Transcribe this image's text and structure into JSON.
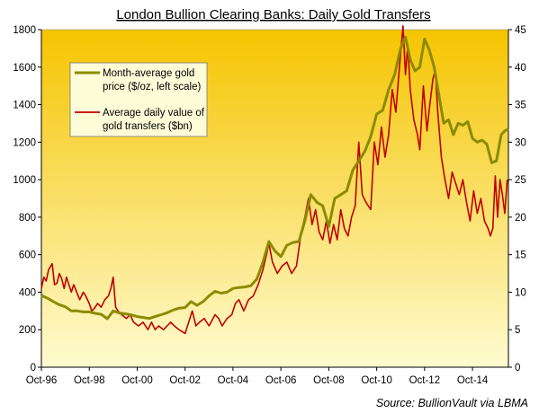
{
  "chart_data": {
    "type": "line",
    "title": "London Bullion Clearing Banks: Daily Gold Transfers",
    "source": "Source: BullionVault via LBMA",
    "x_labels": [
      "Oct-96",
      "Oct-98",
      "Oct-00",
      "Oct-02",
      "Oct-04",
      "Oct-06",
      "Oct-08",
      "Oct-10",
      "Oct-12",
      "Oct-14"
    ],
    "y_left_ticks": [
      "0",
      "200",
      "400",
      "600",
      "800",
      "1000",
      "1200",
      "1400",
      "1600",
      "1800"
    ],
    "y_right_ticks": [
      "0",
      "5",
      "10",
      "15",
      "20",
      "25",
      "30",
      "35",
      "40",
      "45"
    ],
    "ylim_left": [
      0,
      1800
    ],
    "ylim_right": [
      0,
      45
    ],
    "xlim": [
      1996.75,
      2016.25
    ],
    "background": {
      "top": "#f5c400",
      "bottom": "#fffbd0"
    },
    "series": [
      {
        "name": "Month-average gold price ($/oz, left scale)",
        "axis": "left",
        "color": "#8b8b00",
        "points": [
          [
            1996.75,
            382
          ],
          [
            1997.0,
            368
          ],
          [
            1997.25,
            350
          ],
          [
            1997.5,
            333
          ],
          [
            1997.75,
            322
          ],
          [
            1998.0,
            300
          ],
          [
            1998.25,
            300
          ],
          [
            1998.5,
            295
          ],
          [
            1998.75,
            295
          ],
          [
            1999.0,
            287
          ],
          [
            1999.25,
            282
          ],
          [
            1999.5,
            258
          ],
          [
            1999.75,
            300
          ],
          [
            2000.0,
            289
          ],
          [
            2000.25,
            285
          ],
          [
            2000.5,
            279
          ],
          [
            2000.75,
            270
          ],
          [
            2001.0,
            265
          ],
          [
            2001.25,
            260
          ],
          [
            2001.5,
            270
          ],
          [
            2001.75,
            280
          ],
          [
            2002.0,
            290
          ],
          [
            2002.25,
            305
          ],
          [
            2002.5,
            315
          ],
          [
            2002.75,
            318
          ],
          [
            2003.0,
            350
          ],
          [
            2003.25,
            330
          ],
          [
            2003.5,
            350
          ],
          [
            2003.75,
            380
          ],
          [
            2004.0,
            405
          ],
          [
            2004.25,
            395
          ],
          [
            2004.5,
            400
          ],
          [
            2004.75,
            420
          ],
          [
            2005.0,
            425
          ],
          [
            2005.25,
            428
          ],
          [
            2005.5,
            435
          ],
          [
            2005.75,
            470
          ],
          [
            2006.0,
            560
          ],
          [
            2006.25,
            670
          ],
          [
            2006.5,
            620
          ],
          [
            2006.75,
            590
          ],
          [
            2007.0,
            650
          ],
          [
            2007.25,
            665
          ],
          [
            2007.5,
            670
          ],
          [
            2007.75,
            780
          ],
          [
            2008.0,
            920
          ],
          [
            2008.25,
            880
          ],
          [
            2008.5,
            860
          ],
          [
            2008.75,
            750
          ],
          [
            2009.0,
            900
          ],
          [
            2009.25,
            920
          ],
          [
            2009.5,
            940
          ],
          [
            2009.75,
            1050
          ],
          [
            2010.0,
            1100
          ],
          [
            2010.25,
            1150
          ],
          [
            2010.5,
            1230
          ],
          [
            2010.75,
            1350
          ],
          [
            2011.0,
            1370
          ],
          [
            2011.25,
            1480
          ],
          [
            2011.5,
            1560
          ],
          [
            2011.75,
            1700
          ],
          [
            2011.95,
            1760
          ],
          [
            2012.15,
            1640
          ],
          [
            2012.35,
            1580
          ],
          [
            2012.55,
            1600
          ],
          [
            2012.75,
            1750
          ],
          [
            2012.95,
            1690
          ],
          [
            2013.15,
            1600
          ],
          [
            2013.35,
            1450
          ],
          [
            2013.55,
            1300
          ],
          [
            2013.75,
            1320
          ],
          [
            2013.95,
            1240
          ],
          [
            2014.15,
            1300
          ],
          [
            2014.35,
            1290
          ],
          [
            2014.55,
            1310
          ],
          [
            2014.75,
            1220
          ],
          [
            2014.95,
            1200
          ],
          [
            2015.15,
            1210
          ],
          [
            2015.35,
            1190
          ],
          [
            2015.55,
            1090
          ],
          [
            2015.75,
            1100
          ],
          [
            2015.95,
            1240
          ],
          [
            2016.1,
            1260
          ],
          [
            2016.25,
            1270
          ]
        ]
      },
      {
        "name": "Average daily value of gold transfers ($bn)",
        "axis": "right",
        "color": "#c00000",
        "points": [
          [
            1996.75,
            10.5
          ],
          [
            1996.85,
            12.0
          ],
          [
            1996.95,
            11.5
          ],
          [
            1997.05,
            13.0
          ],
          [
            1997.2,
            13.8
          ],
          [
            1997.3,
            11.0
          ],
          [
            1997.4,
            11.2
          ],
          [
            1997.5,
            12.5
          ],
          [
            1997.6,
            11.8
          ],
          [
            1997.7,
            10.5
          ],
          [
            1997.8,
            12.0
          ],
          [
            1997.9,
            11.0
          ],
          [
            1998.0,
            10.0
          ],
          [
            1998.1,
            11.0
          ],
          [
            1998.2,
            10.2
          ],
          [
            1998.35,
            9.0
          ],
          [
            1998.5,
            10.0
          ],
          [
            1998.6,
            9.5
          ],
          [
            1998.75,
            8.5
          ],
          [
            1998.85,
            7.5
          ],
          [
            1998.95,
            7.8
          ],
          [
            1999.1,
            8.5
          ],
          [
            1999.25,
            8.0
          ],
          [
            1999.4,
            9.0
          ],
          [
            1999.55,
            9.5
          ],
          [
            1999.65,
            10.5
          ],
          [
            1999.75,
            12.0
          ],
          [
            1999.85,
            8.0
          ],
          [
            1999.95,
            7.5
          ],
          [
            2000.1,
            7.0
          ],
          [
            2000.3,
            6.5
          ],
          [
            2000.45,
            7.0
          ],
          [
            2000.6,
            6.0
          ],
          [
            2000.8,
            5.5
          ],
          [
            2001.0,
            6.0
          ],
          [
            2001.2,
            5.0
          ],
          [
            2001.35,
            6.0
          ],
          [
            2001.5,
            5.0
          ],
          [
            2001.65,
            5.5
          ],
          [
            2001.85,
            5.0
          ],
          [
            2002.0,
            5.5
          ],
          [
            2002.15,
            6.0
          ],
          [
            2002.3,
            5.5
          ],
          [
            2002.5,
            5.0
          ],
          [
            2002.75,
            4.5
          ],
          [
            2002.9,
            6.0
          ],
          [
            2003.05,
            7.5
          ],
          [
            2003.2,
            5.5
          ],
          [
            2003.35,
            6.0
          ],
          [
            2003.55,
            6.5
          ],
          [
            2003.75,
            5.5
          ],
          [
            2004.0,
            7.0
          ],
          [
            2004.15,
            6.5
          ],
          [
            2004.3,
            5.5
          ],
          [
            2004.5,
            6.5
          ],
          [
            2004.7,
            7.0
          ],
          [
            2004.85,
            8.5
          ],
          [
            2005.0,
            9.0
          ],
          [
            2005.2,
            7.5
          ],
          [
            2005.4,
            9.0
          ],
          [
            2005.6,
            9.5
          ],
          [
            2005.8,
            11.0
          ],
          [
            2006.0,
            13.0
          ],
          [
            2006.15,
            15.0
          ],
          [
            2006.25,
            16.5
          ],
          [
            2006.4,
            14.0
          ],
          [
            2006.6,
            12.5
          ],
          [
            2006.8,
            13.5
          ],
          [
            2007.0,
            14.0
          ],
          [
            2007.2,
            12.5
          ],
          [
            2007.4,
            13.5
          ],
          [
            2007.6,
            18.0
          ],
          [
            2007.75,
            20.0
          ],
          [
            2007.9,
            22.5
          ],
          [
            2008.05,
            19.0
          ],
          [
            2008.2,
            21.0
          ],
          [
            2008.35,
            18.0
          ],
          [
            2008.5,
            17.0
          ],
          [
            2008.65,
            19.5
          ],
          [
            2008.8,
            16.5
          ],
          [
            2008.95,
            19.0
          ],
          [
            2009.1,
            17.0
          ],
          [
            2009.25,
            21.0
          ],
          [
            2009.4,
            18.5
          ],
          [
            2009.55,
            17.5
          ],
          [
            2009.7,
            20.0
          ],
          [
            2009.85,
            21.5
          ],
          [
            2010.0,
            30.0
          ],
          [
            2010.15,
            23.0
          ],
          [
            2010.3,
            22.0
          ],
          [
            2010.5,
            21.0
          ],
          [
            2010.65,
            30.0
          ],
          [
            2010.8,
            27.0
          ],
          [
            2010.95,
            32.0
          ],
          [
            2011.1,
            28.0
          ],
          [
            2011.25,
            31.0
          ],
          [
            2011.4,
            37.0
          ],
          [
            2011.55,
            34.0
          ],
          [
            2011.7,
            40.0
          ],
          [
            2011.85,
            45.5
          ],
          [
            2011.95,
            39.0
          ],
          [
            2012.05,
            43.0
          ],
          [
            2012.15,
            37.0
          ],
          [
            2012.3,
            33.0
          ],
          [
            2012.45,
            31.0
          ],
          [
            2012.55,
            29.0
          ],
          [
            2012.7,
            37.5
          ],
          [
            2012.85,
            31.5
          ],
          [
            2012.95,
            34.5
          ],
          [
            2013.1,
            38.5
          ],
          [
            2013.2,
            39.5
          ],
          [
            2013.3,
            34.0
          ],
          [
            2013.45,
            28.0
          ],
          [
            2013.6,
            25.0
          ],
          [
            2013.75,
            22.5
          ],
          [
            2013.9,
            26.0
          ],
          [
            2014.05,
            24.5
          ],
          [
            2014.2,
            23.0
          ],
          [
            2014.35,
            25.0
          ],
          [
            2014.5,
            22.0
          ],
          [
            2014.65,
            19.5
          ],
          [
            2014.8,
            23.5
          ],
          [
            2014.95,
            20.5
          ],
          [
            2015.1,
            22.5
          ],
          [
            2015.25,
            19.5
          ],
          [
            2015.4,
            18.5
          ],
          [
            2015.5,
            17.5
          ],
          [
            2015.6,
            18.5
          ],
          [
            2015.7,
            25.5
          ],
          [
            2015.8,
            20.0
          ],
          [
            2015.9,
            25.0
          ],
          [
            2016.0,
            23.0
          ],
          [
            2016.1,
            20.5
          ],
          [
            2016.2,
            25.0
          ]
        ]
      }
    ],
    "legend_position": "top-left",
    "grid": false
  }
}
